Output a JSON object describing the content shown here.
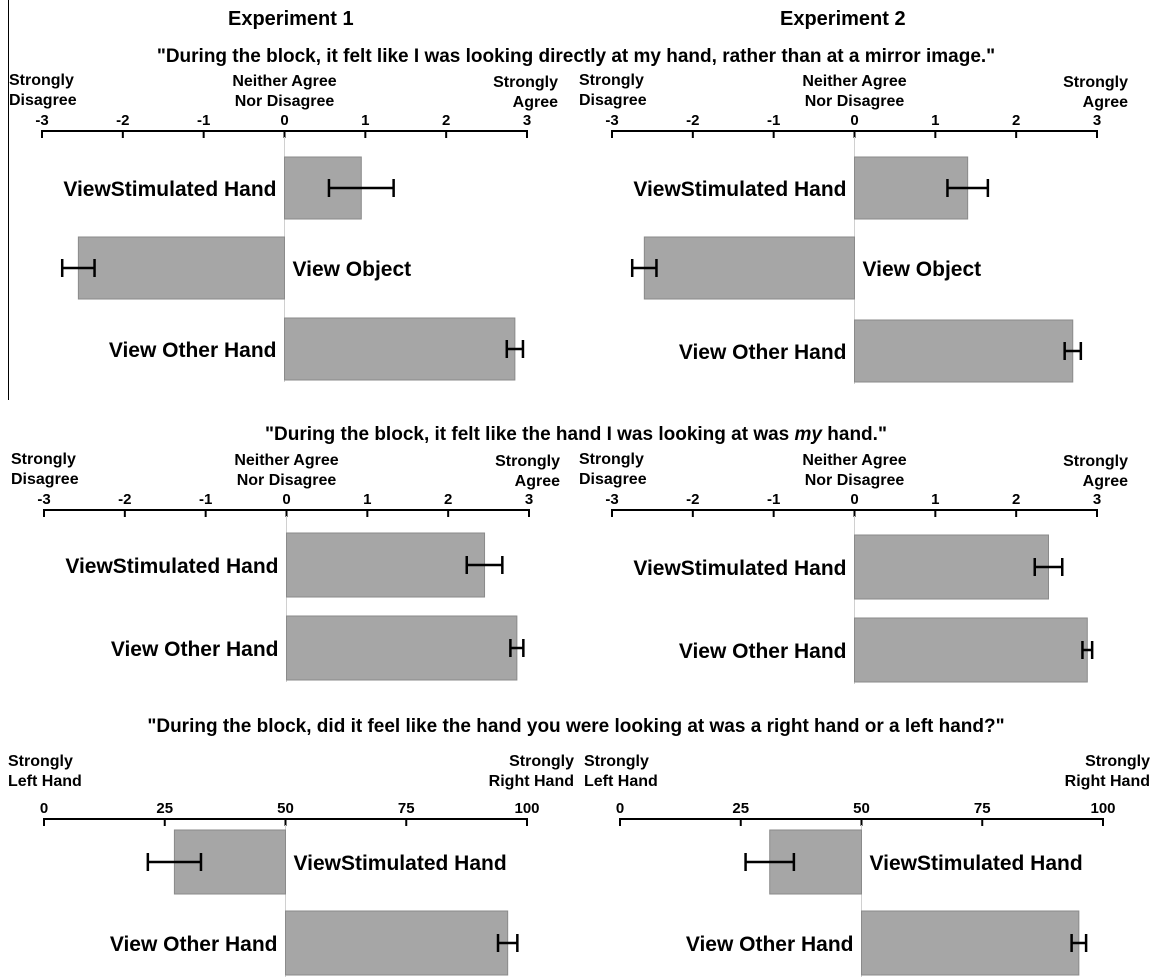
{
  "headers": {
    "exp1": "Experiment 1",
    "exp2": "Experiment 2"
  },
  "questions": {
    "q1": "\"During the block, it felt like I was looking directly at my hand, rather than at a mirror image.\"",
    "q2_pre": "\"During the block, it felt like the hand I was looking at was ",
    "q2_em": "my",
    "q2_post": " hand.\"",
    "q3": "\"During the block, did it feel like the hand you were looking at was a right hand or a left hand?\""
  },
  "scale_labels": {
    "agree_left": [
      "Strongly",
      "Disagree"
    ],
    "agree_mid": [
      "Neither Agree",
      "Nor Disagree"
    ],
    "agree_right": [
      "Strongly",
      "Agree"
    ],
    "hand_left": [
      "Strongly",
      "Left Hand"
    ],
    "hand_right": [
      "Strongly",
      "Right Hand"
    ]
  },
  "colors": {
    "bar": "#a6a6a6",
    "bar_edge": "#8a8a8a",
    "axis": "#000000"
  },
  "chart_data": [
    {
      "type": "bar",
      "orientation": "horizontal",
      "experiment": "Experiment 1",
      "question": "q1",
      "xlim": [
        -3,
        3
      ],
      "ticks": [
        -3,
        -2,
        -1,
        0,
        1,
        2,
        3
      ],
      "baseline": 0,
      "categories": [
        "ViewStimulated Hand",
        "View Object",
        "View Other Hand"
      ],
      "values": [
        0.95,
        -2.55,
        2.85
      ],
      "errors": [
        0.4,
        0.2,
        0.1
      ]
    },
    {
      "type": "bar",
      "orientation": "horizontal",
      "experiment": "Experiment 2",
      "question": "q1",
      "xlim": [
        -3,
        3
      ],
      "ticks": [
        -3,
        -2,
        -1,
        0,
        1,
        2,
        3
      ],
      "baseline": 0,
      "categories": [
        "ViewStimulated Hand",
        "View Object",
        "View Other Hand"
      ],
      "values": [
        1.4,
        -2.6,
        2.7
      ],
      "errors": [
        0.25,
        0.15,
        0.1
      ]
    },
    {
      "type": "bar",
      "orientation": "horizontal",
      "experiment": "Experiment 1",
      "question": "q2",
      "xlim": [
        -3,
        3
      ],
      "ticks": [
        -3,
        -2,
        -1,
        0,
        1,
        2,
        3
      ],
      "baseline": 0,
      "categories": [
        "ViewStimulated Hand",
        "View Other Hand"
      ],
      "values": [
        2.45,
        2.85
      ],
      "errors": [
        0.22,
        0.08
      ]
    },
    {
      "type": "bar",
      "orientation": "horizontal",
      "experiment": "Experiment 2",
      "question": "q2",
      "xlim": [
        -3,
        3
      ],
      "ticks": [
        -3,
        -2,
        -1,
        0,
        1,
        2,
        3
      ],
      "baseline": 0,
      "categories": [
        "ViewStimulated Hand",
        "View Other Hand"
      ],
      "values": [
        2.4,
        2.88
      ],
      "errors": [
        0.17,
        0.06
      ]
    },
    {
      "type": "bar",
      "orientation": "horizontal",
      "experiment": "Experiment 1",
      "question": "q3",
      "xlim": [
        0,
        100
      ],
      "ticks": [
        0,
        25,
        50,
        75,
        100
      ],
      "baseline": 50,
      "categories": [
        "ViewStimulated Hand",
        "View Other Hand"
      ],
      "values": [
        27,
        96
      ],
      "errors": [
        5.5,
        2
      ]
    },
    {
      "type": "bar",
      "orientation": "horizontal",
      "experiment": "Experiment 2",
      "question": "q3",
      "xlim": [
        0,
        100
      ],
      "ticks": [
        0,
        25,
        50,
        75,
        100
      ],
      "baseline": 50,
      "categories": [
        "ViewStimulated Hand",
        "View Other Hand"
      ],
      "values": [
        31,
        95
      ],
      "errors": [
        5,
        1.5
      ]
    }
  ]
}
